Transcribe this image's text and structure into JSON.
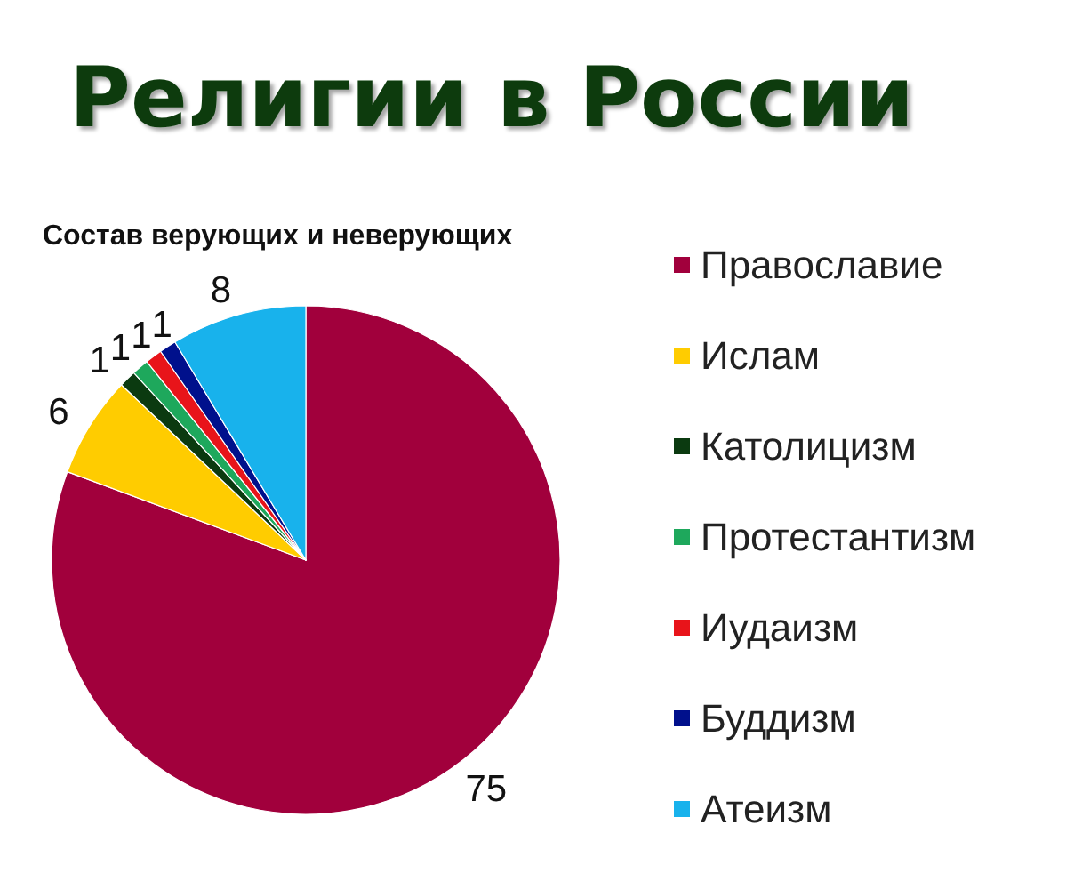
{
  "chart_data": {
    "type": "pie",
    "title": "Религии в России",
    "subtitle": "Состав верующих и неверующих",
    "categories": [
      "Православие",
      "Ислам",
      "Католицизм",
      "Протестантизм",
      "Иудаизм",
      "Буддизм",
      "Атеизм"
    ],
    "values": [
      75,
      6,
      1,
      1,
      1,
      1,
      8
    ],
    "colors": [
      "#a1003c",
      "#ffcc00",
      "#0b3a10",
      "#1ea85c",
      "#e8141a",
      "#00108c",
      "#18b2ec"
    ],
    "legend": "right",
    "data_labels": true
  }
}
